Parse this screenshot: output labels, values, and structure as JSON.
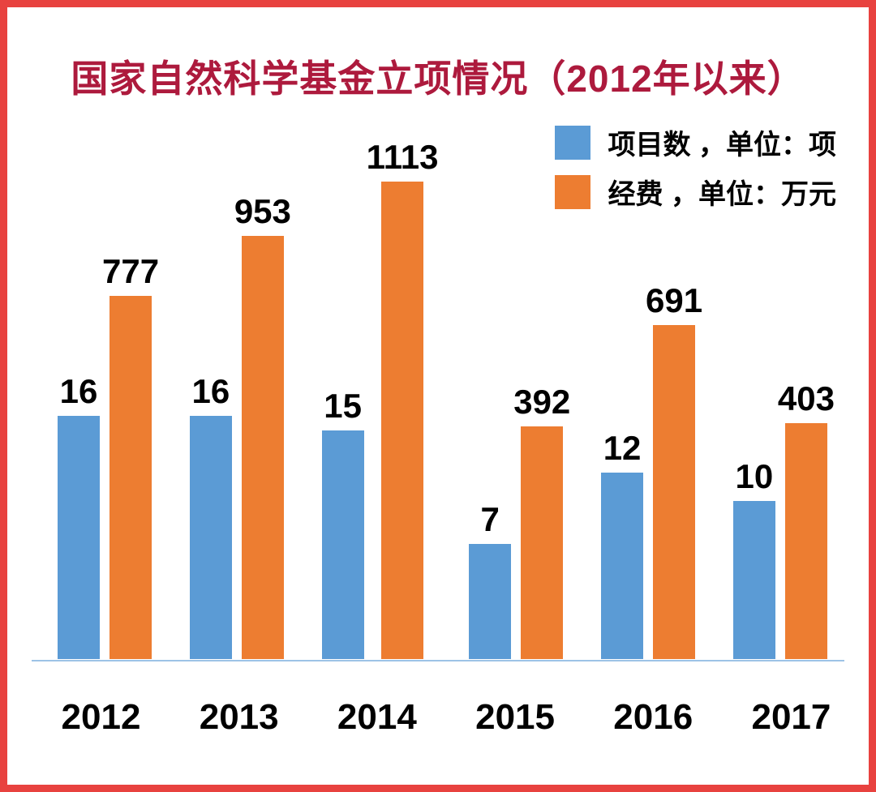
{
  "title": "国家自然科学基金立项情况（2012年以来）",
  "legend": [
    {
      "label": "项目数 ，单位：项",
      "swatch": "blue-square-icon"
    },
    {
      "label": "经费 ，单位：万元",
      "swatch": "orange-square-icon"
    }
  ],
  "colors": {
    "title": "#ad1a3d",
    "border": "#e8423f",
    "baseline": "#9dc3e6",
    "bar_blue": "#5b9bd5",
    "bar_orange": "#ed7d31"
  },
  "chart_data": {
    "type": "bar",
    "title": "国家自然科学基金立项情况（2012年以来）",
    "categories": [
      "2012",
      "2013",
      "2014",
      "2015",
      "2016",
      "2017"
    ],
    "series": [
      {
        "name": "项目数",
        "unit": "项",
        "color": "#5b9bd5",
        "values": [
          16,
          16,
          15,
          7,
          12,
          10
        ]
      },
      {
        "name": "经费",
        "unit": "万元",
        "color": "#ed7d31",
        "values": [
          777,
          953,
          1113,
          392,
          691,
          403
        ]
      }
    ],
    "xlabel": "",
    "ylabel": "",
    "data_labels": true,
    "grid": false,
    "axes_visible": false,
    "legend_position": "top-right",
    "dual_axis": true
  }
}
